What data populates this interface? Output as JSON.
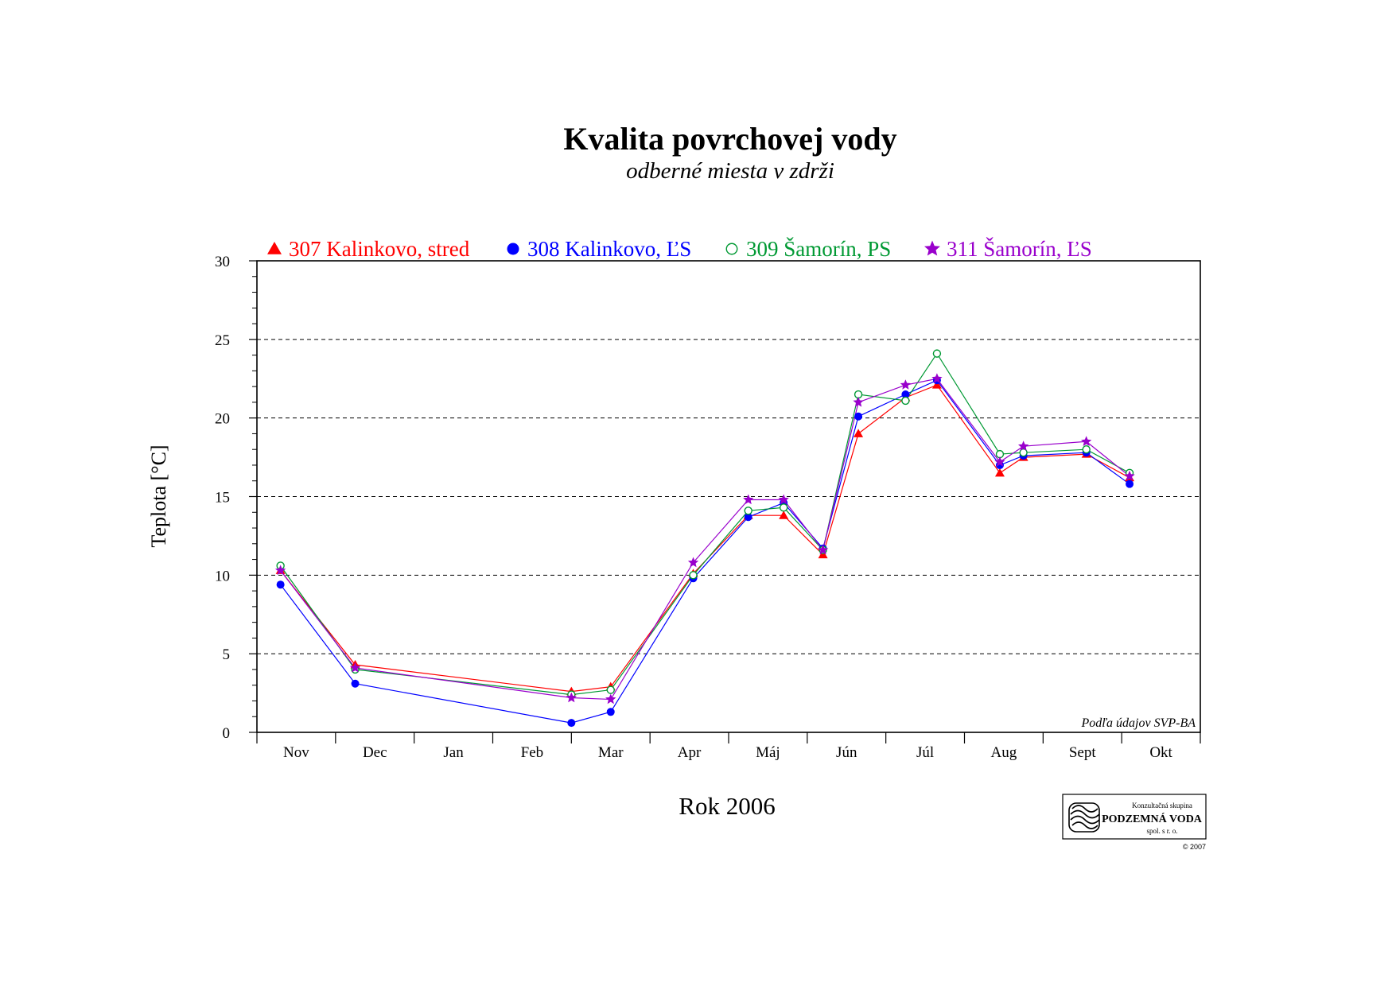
{
  "chart_data": {
    "type": "line",
    "title": "Kvalita povrchovej vody",
    "subtitle": "odberné miesta v zdrži",
    "ylabel": "Teplota [°C]",
    "xlabel": "Rok 2006",
    "ylim": [
      0,
      30
    ],
    "yticks": [
      0,
      5,
      10,
      15,
      20,
      25,
      30
    ],
    "xlim": [
      0,
      12
    ],
    "months": [
      "Nov",
      "Dec",
      "Jan",
      "Feb",
      "Mar",
      "Apr",
      "Máj",
      "Jún",
      "Júl",
      "Aug",
      "Sept",
      "Okt"
    ],
    "grid": "horizontal dashed",
    "legend_position": "top",
    "note": "Podľa údajov SVP-BA",
    "series": [
      {
        "name": "307 Kalinkovo, stred",
        "color": "#ff0000",
        "marker": "triangle",
        "x": [
          0.3,
          1.25,
          4.0,
          4.5,
          5.55,
          6.25,
          6.7,
          7.2,
          7.65,
          8.25,
          8.65,
          9.45,
          9.75,
          10.55,
          11.1
        ],
        "y": [
          10.3,
          4.3,
          2.6,
          2.9,
          10.1,
          13.8,
          13.8,
          11.3,
          19.0,
          21.3,
          22.1,
          16.5,
          17.5,
          17.7,
          16.2
        ]
      },
      {
        "name": "308 Kalinkovo, ĽS",
        "color": "#0000ff",
        "marker": "circle-filled",
        "x": [
          0.3,
          1.25,
          4.0,
          4.5,
          5.55,
          6.25,
          6.7,
          7.2,
          7.65,
          8.25,
          8.65,
          9.45,
          9.75,
          10.55,
          11.1
        ],
        "y": [
          9.4,
          3.1,
          0.6,
          1.3,
          9.8,
          13.7,
          14.6,
          11.7,
          20.1,
          21.5,
          22.4,
          17.0,
          17.6,
          17.8,
          15.8
        ]
      },
      {
        "name": "309 Šamorín, PS",
        "color": "#009933",
        "marker": "circle-open",
        "x": [
          0.3,
          1.25,
          4.0,
          4.5,
          5.55,
          6.25,
          6.7,
          7.2,
          7.65,
          8.25,
          8.65,
          9.45,
          9.75,
          10.55,
          11.1
        ],
        "y": [
          10.6,
          4.0,
          2.4,
          2.7,
          10.0,
          14.1,
          14.3,
          11.6,
          21.5,
          21.1,
          24.1,
          17.7,
          17.8,
          18.0,
          16.5
        ]
      },
      {
        "name": "311 Šamorín, ĽS",
        "color": "#9900cc",
        "marker": "star",
        "x": [
          0.3,
          1.25,
          4.0,
          4.5,
          5.55,
          6.25,
          6.7,
          7.2,
          7.65,
          8.25,
          8.65,
          9.45,
          9.75,
          10.55,
          11.1
        ],
        "y": [
          10.3,
          4.1,
          2.2,
          2.1,
          10.8,
          14.8,
          14.8,
          11.6,
          21.0,
          22.1,
          22.5,
          17.2,
          18.2,
          18.5,
          16.3
        ]
      }
    ]
  },
  "logo": {
    "line1": "Konzultačná skupina",
    "line2": "PODZEMNÁ VODA",
    "line3": "spol. s r. o.",
    "copyright": "© 2007"
  }
}
